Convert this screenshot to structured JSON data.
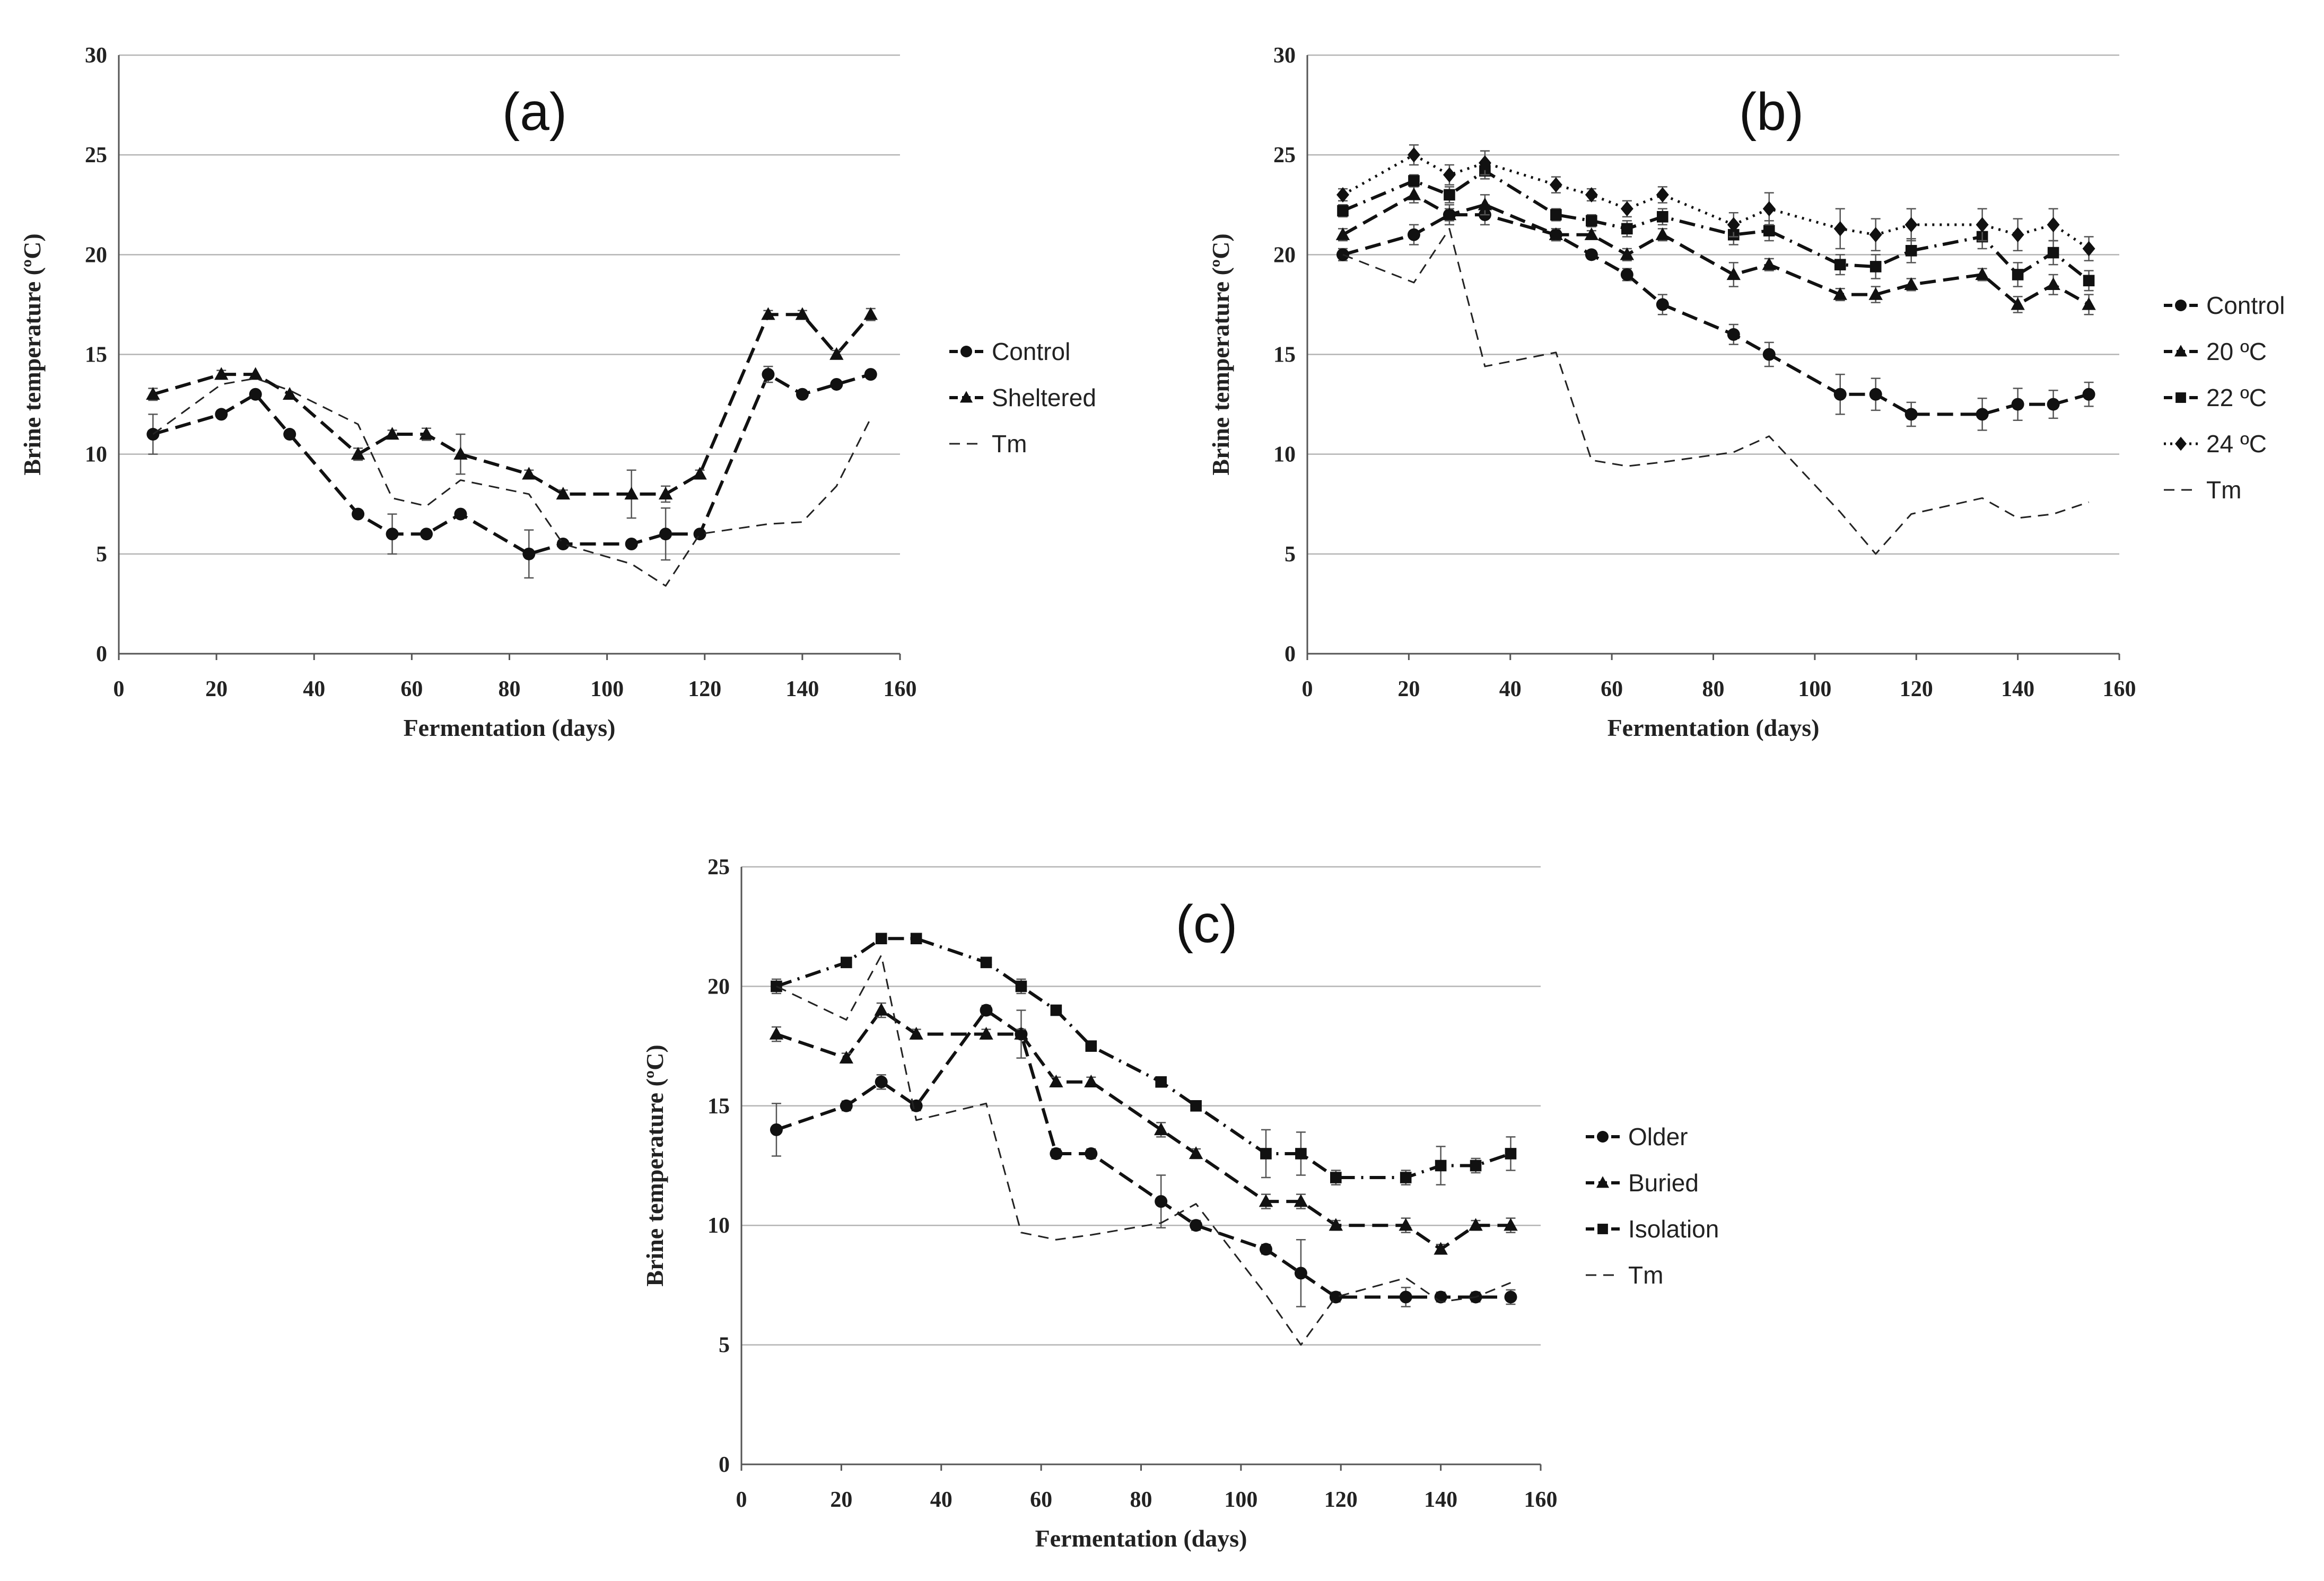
{
  "chart_data": [
    {
      "id": "a",
      "type": "line",
      "panel_label": "(a)",
      "xlabel": "Fermentation (days)",
      "ylabel": "Brine temperature (ºC)",
      "xlim": [
        0,
        160
      ],
      "ylim": [
        0,
        30
      ],
      "xticks": [
        0,
        20,
        40,
        60,
        80,
        100,
        120,
        140,
        160
      ],
      "yticks": [
        0,
        5,
        10,
        15,
        20,
        25,
        30
      ],
      "grid": true,
      "legend_position": "right",
      "series": [
        {
          "name": "Control",
          "marker": "circle",
          "dash": "long",
          "x": [
            7,
            21,
            28,
            35,
            49,
            56,
            63,
            70,
            84,
            91,
            105,
            112,
            119,
            133,
            140,
            147,
            154
          ],
          "y": [
            11,
            12,
            13,
            11,
            7,
            6,
            6,
            7,
            5,
            5.5,
            5.5,
            6,
            6,
            14,
            13,
            13.5,
            14
          ],
          "err": [
            1,
            0,
            0,
            0,
            0,
            1,
            0,
            0,
            1.2,
            0,
            0,
            1.3,
            0,
            0.4,
            0,
            0,
            0
          ]
        },
        {
          "name": "Sheltered",
          "marker": "triangle",
          "dash": "long",
          "x": [
            7,
            21,
            28,
            35,
            49,
            56,
            63,
            70,
            84,
            91,
            105,
            112,
            119,
            133,
            140,
            147,
            154
          ],
          "y": [
            13,
            14,
            14,
            13,
            10,
            11,
            11,
            10,
            9,
            8,
            8,
            8,
            9,
            17,
            17,
            15,
            17
          ],
          "err": [
            0.3,
            0.2,
            0,
            0,
            0.3,
            0.2,
            0.3,
            1,
            0.2,
            0.2,
            1.2,
            0.4,
            0.2,
            0.2,
            0.2,
            0.2,
            0.3
          ]
        },
        {
          "name": "Tm",
          "marker": "none",
          "dash": "thin",
          "x": [
            7,
            21,
            28,
            35,
            49,
            56,
            63,
            70,
            84,
            91,
            105,
            112,
            119,
            133,
            140,
            147,
            154
          ],
          "y": [
            11,
            13.5,
            13.8,
            13.2,
            11.5,
            7.8,
            7.4,
            8.7,
            8,
            5.5,
            4.5,
            3.4,
            6,
            6.5,
            6.6,
            8.4,
            11.8
          ],
          "err": []
        }
      ]
    },
    {
      "id": "b",
      "type": "line",
      "panel_label": "(b)",
      "xlabel": "Fermentation (days)",
      "ylabel": "Brine temperature (ºC)",
      "xlim": [
        0,
        160
      ],
      "ylim": [
        0,
        30
      ],
      "xticks": [
        0,
        20,
        40,
        60,
        80,
        100,
        120,
        140,
        160
      ],
      "yticks": [
        0,
        5,
        10,
        15,
        20,
        25,
        30
      ],
      "grid": true,
      "legend_position": "right",
      "series": [
        {
          "name": "Control",
          "marker": "circle",
          "dash": "long",
          "x": [
            7,
            21,
            28,
            35,
            49,
            56,
            63,
            70,
            84,
            91,
            105,
            112,
            119,
            133,
            140,
            147,
            154
          ],
          "y": [
            20,
            21,
            22,
            22,
            21,
            20,
            19,
            17.5,
            16,
            15,
            13,
            13,
            12,
            12,
            12.5,
            12.5,
            13
          ],
          "err": [
            0.3,
            0.5,
            0.5,
            0.5,
            0.3,
            0.2,
            0.3,
            0.5,
            0.5,
            0.6,
            1,
            0.8,
            0.6,
            0.8,
            0.8,
            0.7,
            0.6
          ]
        },
        {
          "name": "20 ºC",
          "marker": "triangle",
          "dash": "long",
          "x": [
            7,
            21,
            28,
            35,
            49,
            56,
            63,
            70,
            84,
            91,
            105,
            112,
            119,
            133,
            140,
            147,
            154
          ],
          "y": [
            21,
            23,
            22,
            22.5,
            21,
            21,
            20,
            21,
            19,
            19.5,
            18,
            18,
            18.5,
            19,
            17.5,
            18.5,
            17.5
          ],
          "err": [
            0.3,
            0.4,
            0.3,
            0.5,
            0.3,
            0.2,
            0.3,
            0.3,
            0.6,
            0.3,
            0.3,
            0.4,
            0.3,
            0.3,
            0.4,
            0.5,
            0.5
          ]
        },
        {
          "name": "22 ºC",
          "marker": "square",
          "dash": "longdot",
          "x": [
            7,
            21,
            28,
            35,
            49,
            56,
            63,
            70,
            84,
            91,
            105,
            112,
            119,
            133,
            140,
            147,
            154
          ],
          "y": [
            22.2,
            23.7,
            23,
            24.2,
            22,
            21.7,
            21.3,
            21.9,
            21,
            21.2,
            19.5,
            19.4,
            20.2,
            20.9,
            19,
            20.1,
            18.7
          ],
          "err": [
            0.3,
            0.3,
            0.4,
            0.4,
            0.3,
            0.3,
            0.4,
            0.4,
            0.5,
            0.5,
            0.5,
            0.6,
            0.6,
            0.6,
            0.6,
            0.6,
            0.5
          ]
        },
        {
          "name": "24 ºC",
          "marker": "diamond",
          "dash": "dot",
          "x": [
            7,
            21,
            28,
            35,
            49,
            56,
            63,
            70,
            84,
            91,
            105,
            112,
            119,
            133,
            140,
            147,
            154
          ],
          "y": [
            23,
            25,
            24,
            24.6,
            23.5,
            23,
            22.3,
            23,
            21.5,
            22.3,
            21.3,
            21,
            21.5,
            21.5,
            21,
            21.5,
            20.3
          ],
          "err": [
            0.3,
            0.5,
            0.5,
            0.6,
            0.4,
            0.3,
            0.4,
            0.4,
            0.6,
            0.8,
            1,
            0.8,
            0.8,
            0.8,
            0.8,
            0.8,
            0.6
          ]
        },
        {
          "name": "Tm",
          "marker": "none",
          "dash": "thin",
          "x": [
            7,
            21,
            28,
            35,
            49,
            56,
            63,
            70,
            84,
            91,
            105,
            112,
            119,
            133,
            140,
            147,
            154
          ],
          "y": [
            20,
            18.6,
            21.3,
            14.4,
            15.1,
            9.7,
            9.4,
            9.6,
            10.1,
            10.9,
            7.1,
            5,
            7,
            7.8,
            6.8,
            7,
            7.6
          ],
          "err": []
        }
      ]
    },
    {
      "id": "c",
      "type": "line",
      "panel_label": "(c)",
      "xlabel": "Fermentation (days)",
      "ylabel": "Brine temperature (ºC)",
      "xlim": [
        0,
        160
      ],
      "ylim": [
        0,
        25
      ],
      "xticks": [
        0,
        20,
        40,
        60,
        80,
        100,
        120,
        140,
        160
      ],
      "yticks": [
        0,
        5,
        10,
        15,
        20,
        25
      ],
      "grid": true,
      "legend_position": "right",
      "series": [
        {
          "name": "Older",
          "marker": "circle",
          "dash": "long",
          "x": [
            7,
            21,
            28,
            35,
            49,
            56,
            63,
            70,
            84,
            91,
            105,
            112,
            119,
            133,
            140,
            147,
            154
          ],
          "y": [
            14,
            15,
            16,
            15,
            19,
            18,
            13,
            13,
            11,
            10,
            9,
            8,
            7,
            7,
            7,
            7,
            7
          ],
          "err": [
            1.1,
            0.2,
            0.3,
            0.2,
            0.2,
            1,
            0.2,
            0.2,
            1.1,
            0.2,
            0.2,
            1.4,
            0.2,
            0.4,
            0.2,
            0.2,
            0.3
          ]
        },
        {
          "name": "Buried",
          "marker": "triangle",
          "dash": "long",
          "x": [
            7,
            21,
            28,
            35,
            49,
            56,
            63,
            70,
            84,
            91,
            105,
            112,
            119,
            133,
            140,
            147,
            154
          ],
          "y": [
            18,
            17,
            19,
            18,
            18,
            18,
            16,
            16,
            14,
            13,
            11,
            11,
            10,
            10,
            9,
            10,
            10
          ],
          "err": [
            0.3,
            0.2,
            0.3,
            0.2,
            0.2,
            0.2,
            0.2,
            0.2,
            0.3,
            0.2,
            0.3,
            0.3,
            0.2,
            0.3,
            0.2,
            0.2,
            0.3
          ]
        },
        {
          "name": "Isolation",
          "marker": "square",
          "dash": "longdot",
          "x": [
            7,
            21,
            28,
            35,
            49,
            56,
            63,
            70,
            84,
            91,
            105,
            112,
            119,
            133,
            140,
            147,
            154
          ],
          "y": [
            20,
            21,
            22,
            22,
            21,
            20,
            19,
            17.5,
            16,
            15,
            13,
            13,
            12,
            12,
            12.5,
            12.5,
            13
          ],
          "err": [
            0.3,
            0.1,
            0.1,
            0.2,
            0.1,
            0.3,
            0.2,
            0.1,
            0.1,
            0.1,
            1,
            0.9,
            0.3,
            0.3,
            0.8,
            0.3,
            0.7
          ]
        },
        {
          "name": "Tm",
          "marker": "none",
          "dash": "thin",
          "x": [
            7,
            21,
            28,
            35,
            49,
            56,
            63,
            70,
            84,
            91,
            105,
            112,
            119,
            133,
            140,
            147,
            154
          ],
          "y": [
            20,
            18.6,
            21.3,
            14.4,
            15.1,
            9.7,
            9.4,
            9.6,
            10.1,
            10.9,
            7.1,
            5,
            7,
            7.8,
            6.8,
            7,
            7.6
          ],
          "err": []
        }
      ]
    }
  ]
}
